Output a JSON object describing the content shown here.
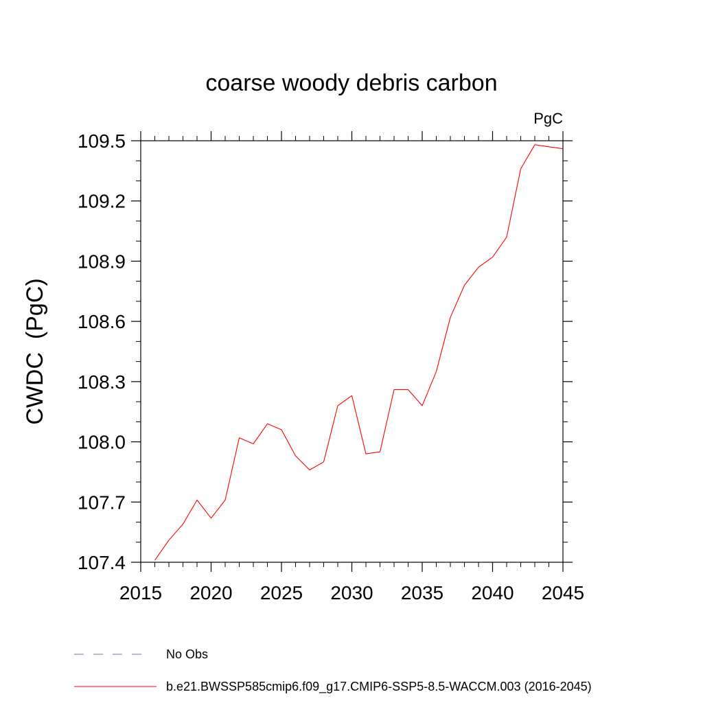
{
  "chart_data": {
    "type": "line",
    "title": "coarse woody debris carbon",
    "units_label": "PgC",
    "xlabel": "",
    "ylabel": "CWDC  (PgC)",
    "xlim": [
      2015,
      2045
    ],
    "ylim": [
      107.4,
      109.5
    ],
    "x_ticks": [
      2015,
      2020,
      2025,
      2030,
      2035,
      2040,
      2045
    ],
    "x_tick_labels": [
      "2015",
      "2020",
      "2025",
      "2030",
      "2035",
      "2040",
      "2045"
    ],
    "y_ticks": [
      107.4,
      107.7,
      108.0,
      108.3,
      108.6,
      108.9,
      109.2,
      109.5
    ],
    "y_tick_labels": [
      "107.4",
      "107.7",
      "108.0",
      "108.3",
      "108.6",
      "108.9",
      "109.2",
      "109.5"
    ],
    "grid": false,
    "legend_position": "bottom",
    "series": [
      {
        "name": "b.e21.BWSSP585cmip6.f09_g17.CMIP6-SSP5-8.5-WACCM.003 (2016-2045)",
        "color": "#ff0000",
        "dash": "solid",
        "x": [
          2016,
          2017,
          2018,
          2019,
          2020,
          2021,
          2022,
          2023,
          2024,
          2025,
          2026,
          2027,
          2028,
          2029,
          2030,
          2031,
          2032,
          2033,
          2034,
          2035,
          2036,
          2037,
          2038,
          2039,
          2040,
          2041,
          2042,
          2043,
          2044,
          2045
        ],
        "y": [
          107.41,
          107.51,
          107.59,
          107.71,
          107.62,
          107.71,
          108.02,
          107.99,
          108.09,
          108.06,
          107.93,
          107.86,
          107.9,
          108.18,
          108.23,
          107.94,
          107.95,
          108.26,
          108.26,
          108.18,
          108.35,
          108.62,
          108.78,
          108.87,
          108.92,
          109.02,
          109.36,
          109.48,
          109.47,
          109.46
        ]
      }
    ],
    "legend": [
      {
        "label": "No Obs",
        "color": "#7a6fa8",
        "dash": "dashed"
      },
      {
        "label": "b.e21.BWSSP585cmip6.f09_g17.CMIP6-SSP5-8.5-WACCM.003 (2016-2045)",
        "color": "#ff0000",
        "dash": "solid"
      }
    ]
  }
}
